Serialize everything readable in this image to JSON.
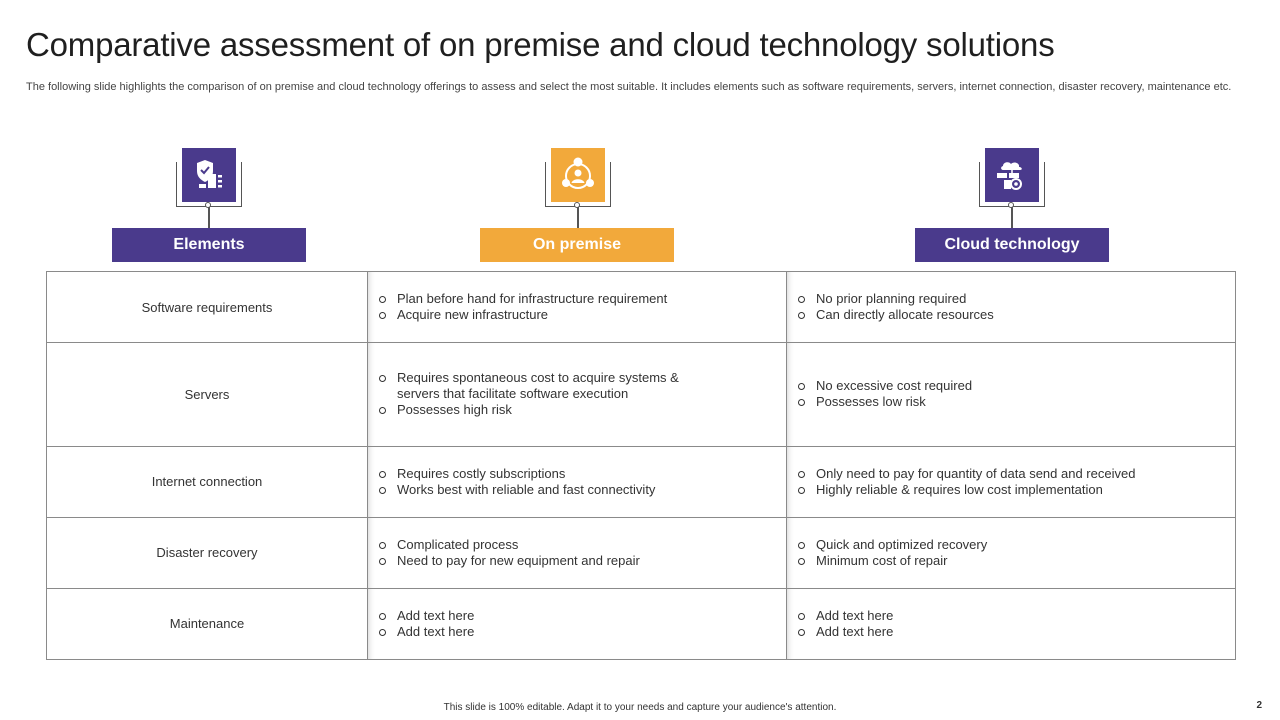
{
  "header": {
    "title": "Comparative assessment of on premise and cloud technology solutions",
    "subtitle": "The following slide highlights the comparison of on premise and cloud technology offerings to assess and select the most suitable. It includes elements such as software requirements, servers, internet connection, disaster recovery, maintenance etc."
  },
  "colors": {
    "purple": "#4a3a8c",
    "orange": "#f2a93b"
  },
  "columns": [
    {
      "label": "Elements",
      "icon": "security-server-icon"
    },
    {
      "label": "On premise",
      "icon": "user-network-icon"
    },
    {
      "label": "Cloud technology",
      "icon": "cloud-server-icon"
    }
  ],
  "rows": [
    {
      "element": "Software requirements",
      "on_premise": [
        "Plan before hand for infrastructure requirement",
        "Acquire new infrastructure"
      ],
      "cloud": [
        "No prior planning required",
        "Can directly allocate resources"
      ]
    },
    {
      "element": "Servers",
      "on_premise": [
        "Requires spontaneous cost to acquire systems & servers that facilitate software execution",
        "Possesses high risk"
      ],
      "cloud": [
        "No excessive cost required",
        "Possesses low risk"
      ]
    },
    {
      "element": "Internet connection",
      "on_premise": [
        "Requires costly subscriptions",
        "Works best with reliable and fast connectivity"
      ],
      "cloud": [
        "Only need to pay for quantity of data send and received",
        "Highly reliable & requires low cost implementation"
      ]
    },
    {
      "element": "Disaster recovery",
      "on_premise": [
        "Complicated process",
        "Need to pay for new equipment and repair"
      ],
      "cloud": [
        "Quick and optimized recovery",
        "Minimum cost of repair"
      ]
    },
    {
      "element": "Maintenance",
      "on_premise": [
        "Add text here",
        "Add text here"
      ],
      "cloud": [
        "Add text here",
        "Add text here"
      ]
    }
  ],
  "footer": {
    "note": "This slide is 100% editable. Adapt it to your needs and capture your audience's attention.",
    "page_number": "2"
  }
}
